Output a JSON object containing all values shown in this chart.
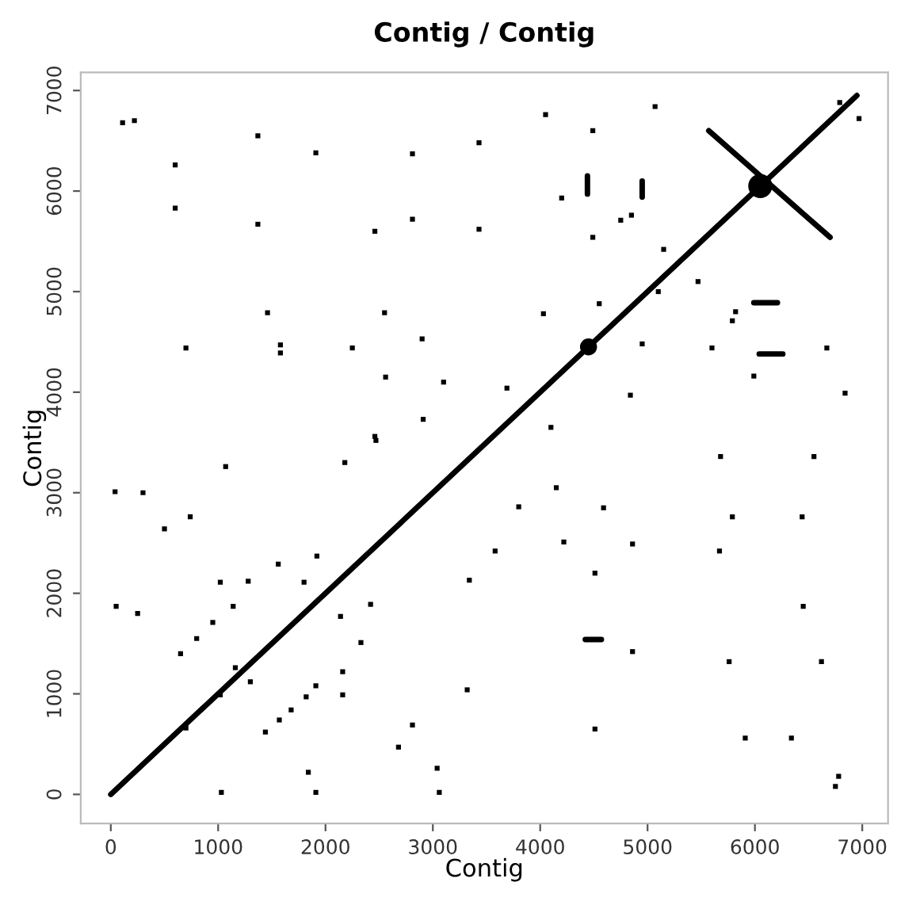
{
  "chart_data": {
    "type": "scatter",
    "title": "Contig / Contig",
    "xlabel": "Contig",
    "ylabel": "Contig",
    "xlim": [
      -280,
      7240
    ],
    "ylim": [
      -290,
      7180
    ],
    "xticks": [
      0,
      1000,
      2000,
      3000,
      4000,
      5000,
      6000,
      7000
    ],
    "yticks": [
      0,
      1000,
      2000,
      3000,
      4000,
      5000,
      6000,
      7000
    ],
    "grid": false,
    "legend": false,
    "series": [
      {
        "type": "line",
        "color": "#000000",
        "x": [
          0,
          6950
        ],
        "values": [
          0,
          6950
        ]
      },
      {
        "type": "line",
        "color": "#000000",
        "x": [
          5570,
          6700
        ],
        "values": [
          6600,
          5540
        ]
      },
      {
        "type": "line",
        "color": "#000000",
        "x": [
          4440,
          4440
        ],
        "values": [
          6150,
          5970
        ]
      },
      {
        "type": "line",
        "color": "#000000",
        "x": [
          4950,
          4950
        ],
        "values": [
          6100,
          5940
        ]
      },
      {
        "type": "line",
        "color": "#000000",
        "x": [
          5990,
          6210
        ],
        "values": [
          4890,
          4890
        ]
      },
      {
        "type": "line",
        "color": "#000000",
        "x": [
          6040,
          6260
        ],
        "values": [
          4380,
          4380
        ]
      },
      {
        "type": "line",
        "color": "#000000",
        "x": [
          4420,
          4570
        ],
        "values": [
          1540,
          1540
        ]
      },
      {
        "color": "#000000",
        "marker": "square",
        "x": [
          110,
          220,
          1370,
          1910,
          2810,
          3430,
          600,
          600,
          1370,
          2460,
          2810,
          3430,
          1460,
          2550,
          700,
          1580,
          1580,
          2250,
          2900,
          2560,
          3100,
          2910,
          2460,
          4050,
          5070,
          4490,
          6790,
          6970,
          4200,
          4750,
          4850,
          4490,
          5150,
          5470,
          5100,
          4030,
          4550,
          5820,
          5790,
          4950,
          5600,
          6670,
          5990,
          3690,
          4840,
          6840,
          4100,
          1070,
          2180,
          2470,
          40,
          300,
          740,
          500,
          1560,
          1920,
          1020,
          1280,
          1800,
          3340,
          50,
          250,
          2420,
          2140,
          2330,
          650,
          800,
          950,
          1140,
          2160,
          2160,
          3320,
          1440,
          1570,
          1680,
          1820,
          1910,
          1160,
          1300,
          1020,
          700,
          2810,
          2680,
          3040,
          1840,
          1030,
          1910,
          3060,
          5680,
          6550,
          4150,
          3800,
          4590,
          5790,
          6440,
          3580,
          4220,
          4860,
          5670,
          4510,
          6450,
          4860,
          5760,
          6620,
          4510,
          5910,
          6340,
          6780,
          6750
        ],
        "values": [
          6680,
          6700,
          6550,
          6380,
          6370,
          6480,
          6260,
          5830,
          5670,
          5600,
          5720,
          5620,
          4790,
          4790,
          4440,
          4470,
          4390,
          4440,
          4530,
          4150,
          4100,
          3730,
          3560,
          6760,
          6840,
          6600,
          6880,
          6720,
          5930,
          5710,
          5760,
          5540,
          5420,
          5100,
          5000,
          4780,
          4880,
          4800,
          4710,
          4480,
          4440,
          4440,
          4160,
          4040,
          3970,
          3990,
          3650,
          3260,
          3300,
          3520,
          3010,
          3000,
          2760,
          2640,
          2290,
          2370,
          2110,
          2120,
          2110,
          2130,
          1870,
          1800,
          1890,
          1770,
          1510,
          1400,
          1550,
          1710,
          1870,
          1220,
          990,
          1040,
          620,
          740,
          840,
          970,
          1080,
          1260,
          1120,
          990,
          660,
          690,
          470,
          260,
          220,
          20,
          20,
          20,
          3360,
          3360,
          3050,
          2860,
          2850,
          2760,
          2760,
          2420,
          2510,
          2490,
          2420,
          2200,
          1870,
          1420,
          1320,
          1320,
          650,
          560,
          560,
          180,
          80
        ]
      },
      {
        "type": "bubble",
        "color": "#000000",
        "marker": "circle",
        "x": [
          4450,
          6050
        ],
        "values": [
          4450,
          6050
        ],
        "sizes": [
          0.5,
          1
        ]
      }
    ]
  }
}
